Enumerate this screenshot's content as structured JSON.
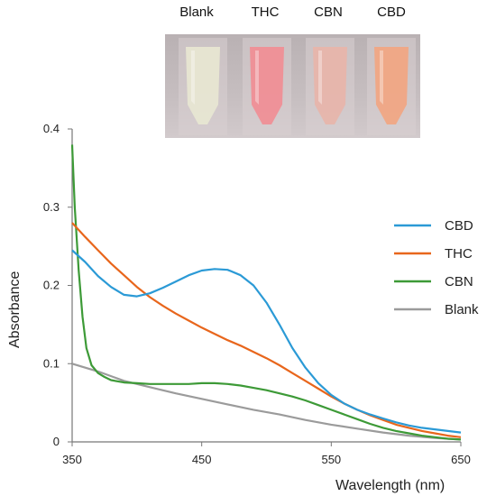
{
  "photo": {
    "labels": [
      "Blank",
      "THC",
      "CBN",
      "CBD"
    ],
    "vial_colors": [
      "#e7e6d2",
      "#ef8f96",
      "#e7b5ab",
      "#f0a784"
    ]
  },
  "chart_data": {
    "type": "line",
    "xlabel": "Wavelength  (nm)",
    "ylabel": "Absorbance",
    "xlim": [
      350,
      650
    ],
    "ylim": [
      0,
      0.4
    ],
    "x_ticks": [
      "350",
      "450",
      "550",
      "650"
    ],
    "y_ticks": [
      "0",
      "0.1",
      "0.2",
      "0.3",
      "0.4"
    ],
    "grid": false,
    "legend_position": "right",
    "series": [
      {
        "name": "CBD",
        "color": "#2b9ad6",
        "x": [
          350,
          360,
          370,
          380,
          390,
          400,
          410,
          420,
          430,
          440,
          450,
          460,
          470,
          480,
          490,
          500,
          510,
          520,
          530,
          540,
          550,
          560,
          570,
          580,
          590,
          600,
          610,
          620,
          630,
          640,
          650
        ],
        "y": [
          0.245,
          0.23,
          0.212,
          0.198,
          0.188,
          0.186,
          0.19,
          0.197,
          0.205,
          0.213,
          0.219,
          0.221,
          0.22,
          0.213,
          0.2,
          0.178,
          0.15,
          0.12,
          0.095,
          0.075,
          0.06,
          0.049,
          0.041,
          0.035,
          0.03,
          0.025,
          0.021,
          0.018,
          0.016,
          0.014,
          0.012
        ]
      },
      {
        "name": "THC",
        "color": "#e8661c",
        "x": [
          350,
          360,
          370,
          380,
          390,
          400,
          410,
          420,
          430,
          440,
          450,
          460,
          470,
          480,
          490,
          500,
          510,
          520,
          530,
          540,
          550,
          560,
          570,
          580,
          590,
          600,
          610,
          620,
          630,
          640,
          650
        ],
        "y": [
          0.28,
          0.262,
          0.245,
          0.228,
          0.213,
          0.198,
          0.185,
          0.174,
          0.164,
          0.155,
          0.146,
          0.138,
          0.13,
          0.123,
          0.115,
          0.107,
          0.098,
          0.088,
          0.078,
          0.068,
          0.058,
          0.049,
          0.041,
          0.034,
          0.028,
          0.022,
          0.018,
          0.014,
          0.011,
          0.008,
          0.006
        ]
      },
      {
        "name": "CBN",
        "color": "#3d9a37",
        "x": [
          350,
          352,
          355,
          358,
          361,
          365,
          370,
          375,
          380,
          390,
          400,
          410,
          420,
          430,
          440,
          450,
          460,
          470,
          480,
          490,
          500,
          510,
          520,
          530,
          540,
          550,
          560,
          570,
          580,
          590,
          600,
          610,
          620,
          630,
          640,
          650
        ],
        "y": [
          0.38,
          0.3,
          0.22,
          0.16,
          0.12,
          0.098,
          0.088,
          0.083,
          0.079,
          0.076,
          0.075,
          0.074,
          0.074,
          0.074,
          0.074,
          0.075,
          0.075,
          0.074,
          0.072,
          0.069,
          0.066,
          0.062,
          0.058,
          0.053,
          0.047,
          0.041,
          0.035,
          0.029,
          0.023,
          0.018,
          0.014,
          0.011,
          0.008,
          0.006,
          0.004,
          0.003
        ]
      },
      {
        "name": "Blank",
        "color": "#9b9b9b",
        "x": [
          350,
          370,
          390,
          410,
          430,
          450,
          470,
          490,
          510,
          530,
          550,
          570,
          590,
          610,
          630,
          650
        ],
        "y": [
          0.1,
          0.09,
          0.078,
          0.07,
          0.062,
          0.055,
          0.048,
          0.041,
          0.035,
          0.028,
          0.022,
          0.017,
          0.012,
          0.008,
          0.005,
          0.003
        ]
      }
    ]
  }
}
